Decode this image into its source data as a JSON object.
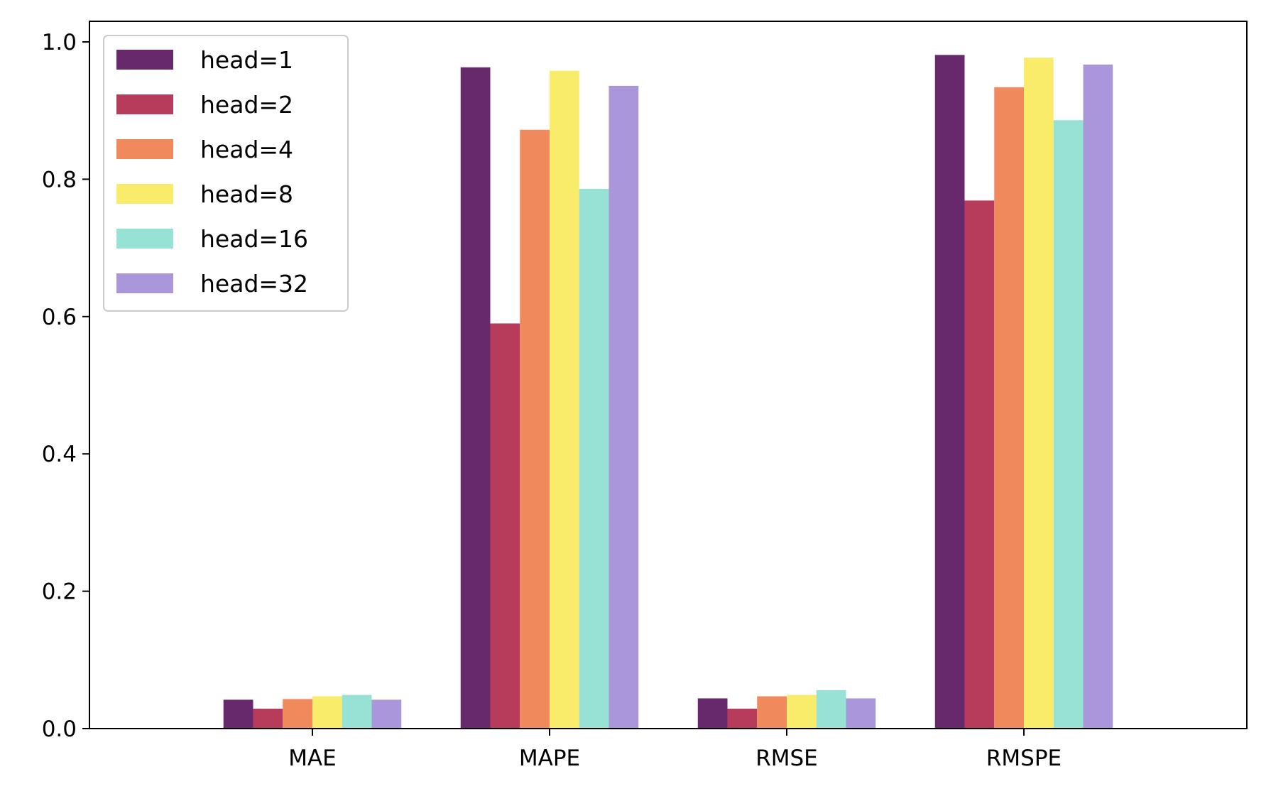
{
  "chart_data": {
    "type": "bar",
    "title": "",
    "xlabel": "",
    "ylabel": "",
    "categories": [
      "MAE",
      "MAPE",
      "RMSE",
      "RMSPE"
    ],
    "ylim": [
      0.0,
      1.03
    ],
    "yticks": [
      0.0,
      0.2,
      0.4,
      0.6,
      0.8,
      1.0
    ],
    "ytick_labels": [
      "0.0",
      "0.2",
      "0.4",
      "0.6",
      "0.8",
      "1.0"
    ],
    "grid": false,
    "legend_position": "top-left",
    "series": [
      {
        "name": "head=1",
        "color": "#68296c",
        "values": [
          0.042,
          0.963,
          0.044,
          0.981
        ]
      },
      {
        "name": "head=2",
        "color": "#b73b5a",
        "values": [
          0.029,
          0.59,
          0.029,
          0.769
        ]
      },
      {
        "name": "head=4",
        "color": "#f0895c",
        "values": [
          0.043,
          0.872,
          0.047,
          0.934
        ]
      },
      {
        "name": "head=8",
        "color": "#f9ec6b",
        "values": [
          0.047,
          0.958,
          0.049,
          0.977
        ]
      },
      {
        "name": "head=16",
        "color": "#97e2d4",
        "values": [
          0.049,
          0.786,
          0.056,
          0.886
        ]
      },
      {
        "name": "head=32",
        "color": "#aa97db",
        "values": [
          0.042,
          0.936,
          0.044,
          0.967
        ]
      }
    ]
  }
}
